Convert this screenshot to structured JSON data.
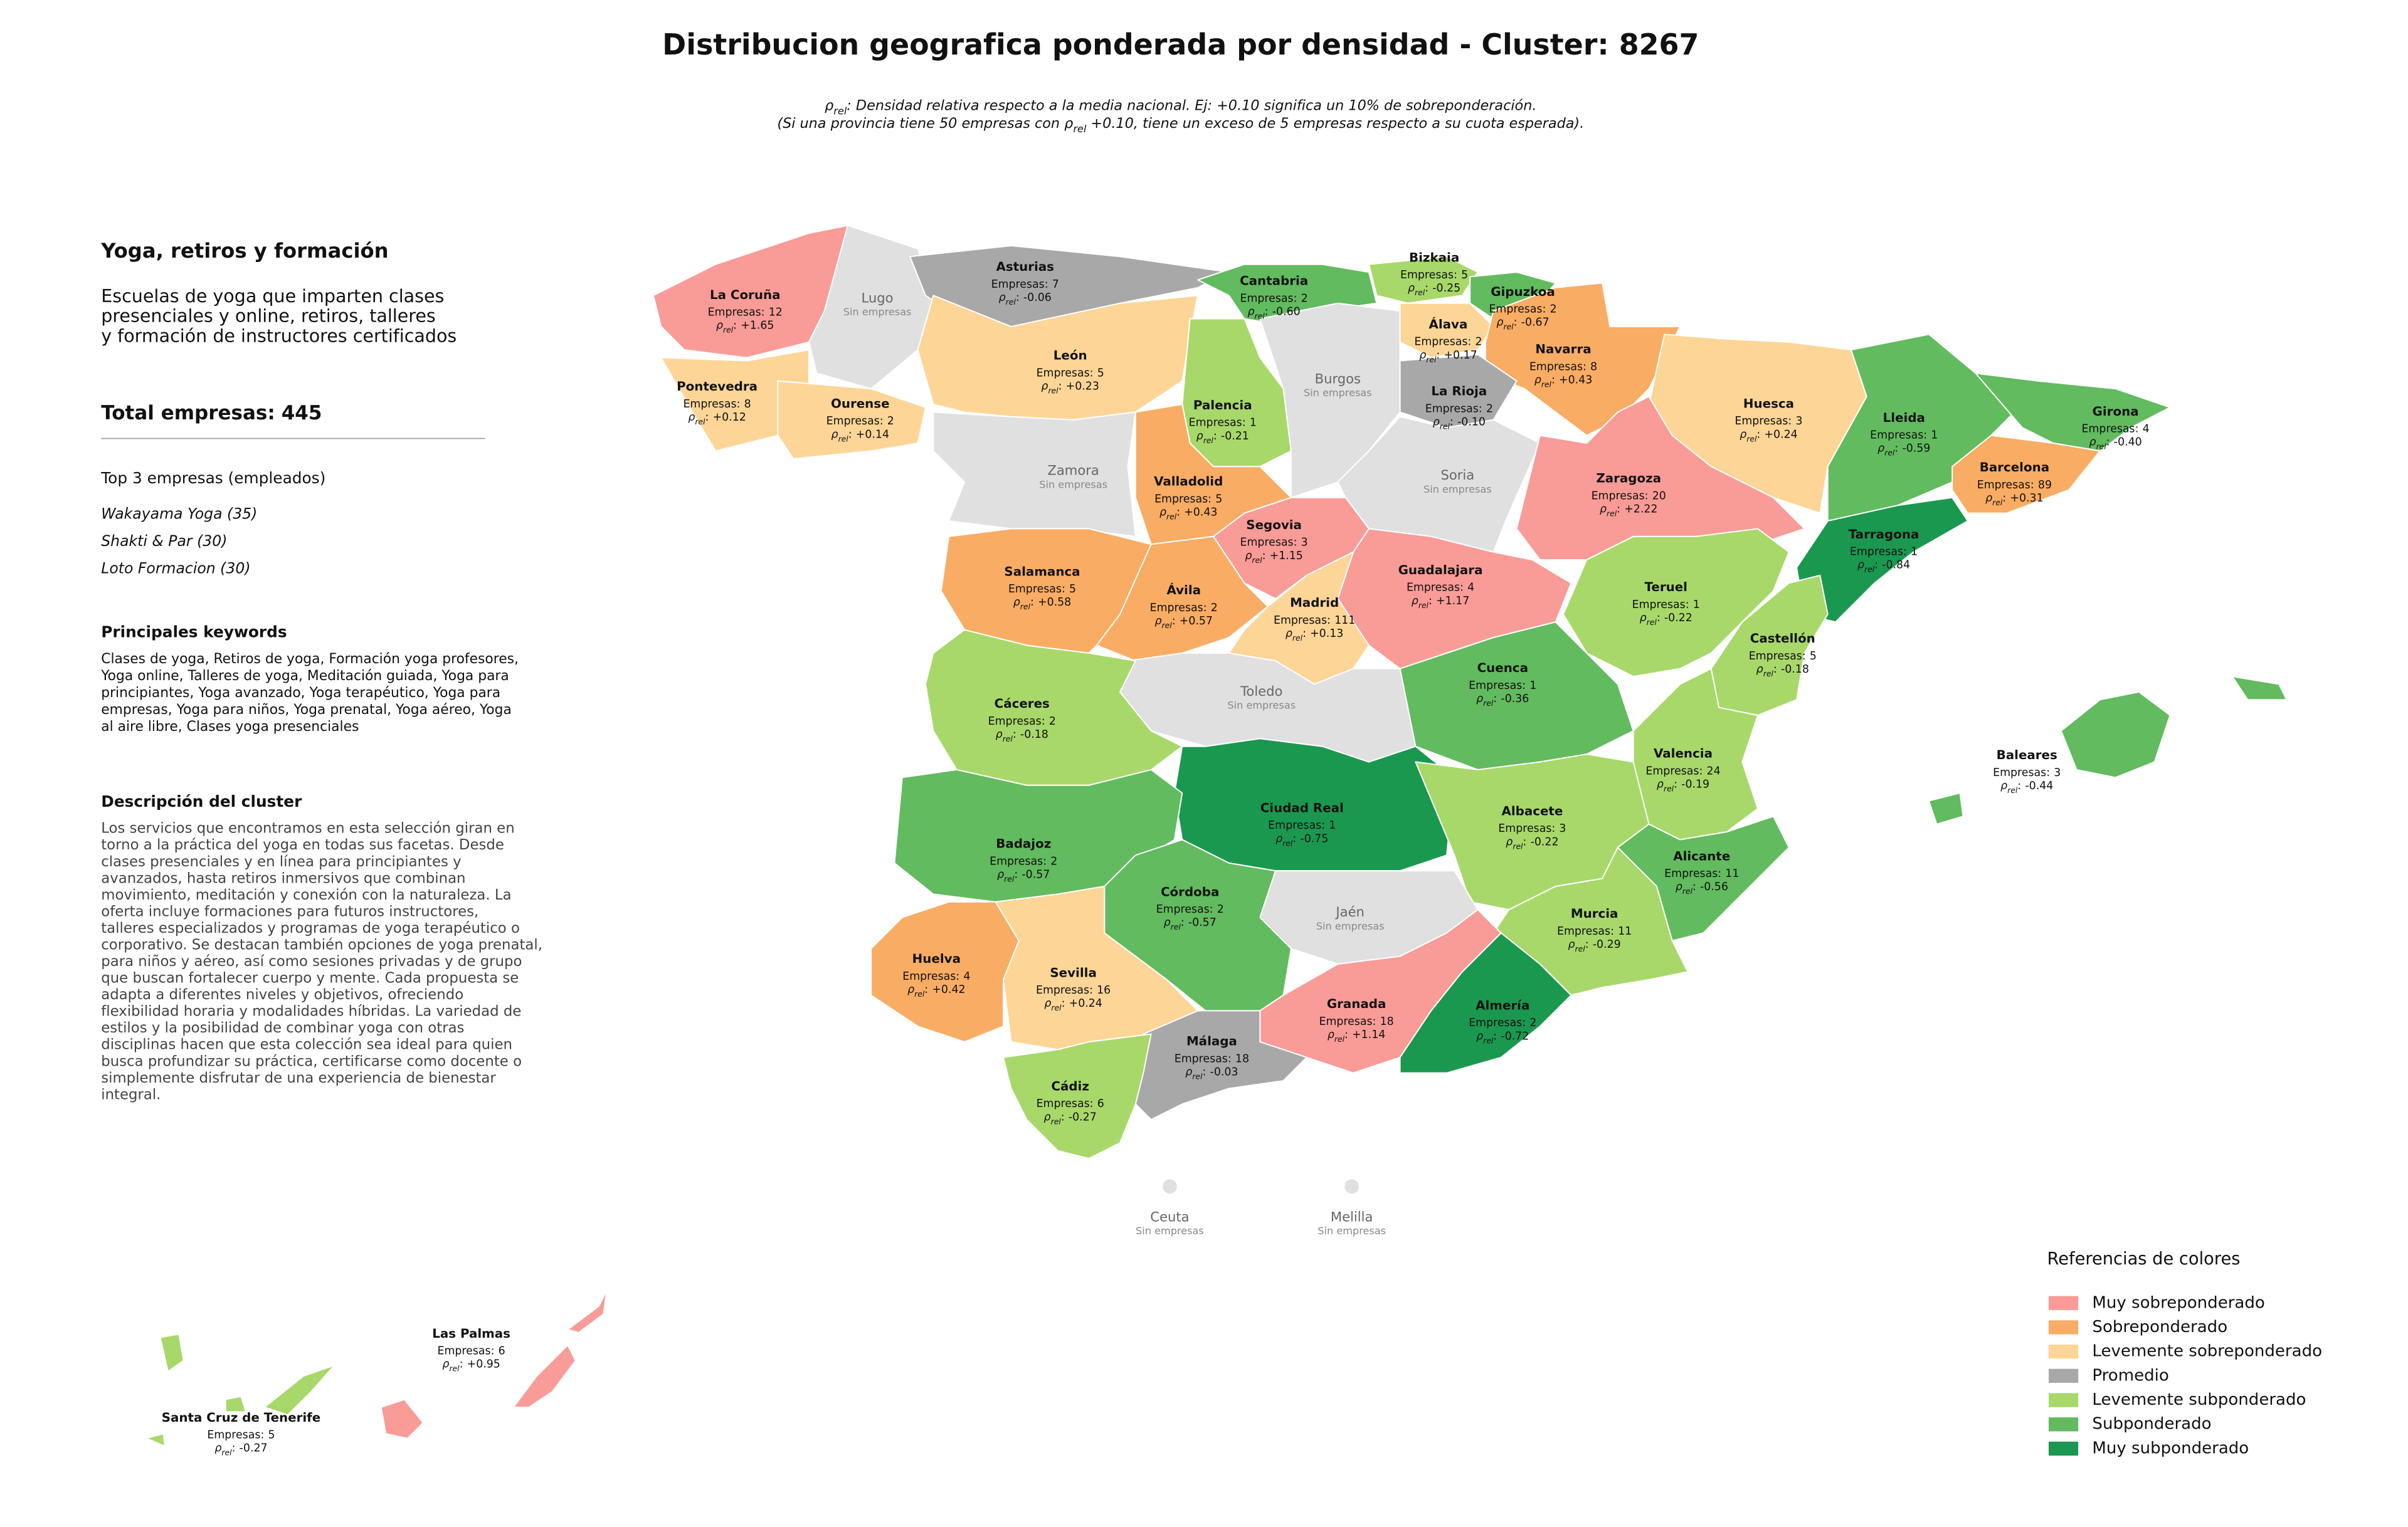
{
  "title": "Distribucion geografica ponderada por densidad - Cluster: 8267",
  "note_lines": [
    [
      {
        "t": "ρ"
      },
      {
        "sub": "rel"
      },
      {
        "t": ": Densidad relativa respecto a la media nacional. Ej: +0.10 significa un 10% de sobreponderación."
      }
    ],
    [
      {
        "t": "(Si una provincia tiene 50 empresas con "
      },
      {
        "t": "ρ"
      },
      {
        "sub": "rel"
      },
      {
        "t": " +0.10, tiene un exceso de 5 empresas respecto a su cuota esperada)."
      }
    ]
  ],
  "sidebar": {
    "title": "Yoga, retiros y formación",
    "description": [
      "Escuelas de yoga que imparten clases",
      "presenciales y online, retiros, talleres",
      "y formación de instructores certificados"
    ],
    "total_label": "Total empresas:",
    "total": 445,
    "top_heading": "Top 3 empresas (empleados)",
    "top": [
      "Wakayama Yoga (35)",
      "Shakti & Par (30)",
      "Loto Formacion (30)"
    ],
    "keywords_heading": "Principales keywords",
    "keywords": [
      "Clases de yoga, Retiros de yoga, Formación yoga profesores,",
      "Yoga online, Talleres de yoga, Meditación guiada, Yoga para",
      "principiantes, Yoga avanzado, Yoga terapéutico, Yoga para",
      "empresas, Yoga para niños, Yoga prenatal, Yoga aéreo, Yoga",
      "al aire libre, Clases yoga presenciales"
    ],
    "cluster_heading": "Descripción del cluster",
    "cluster_text": [
      "Los servicios que encontramos en esta selección giran en",
      "torno a la práctica del yoga en todas sus facetas. Desde",
      "clases presenciales y en línea para principiantes y",
      "avanzados, hasta retiros inmersivos que combinan",
      "movimiento, meditación y conexión con la naturaleza. La",
      "oferta incluye formaciones para futuros instructores,",
      "talleres especializados y programas de yoga terapéutico o",
      "corporativo. Se destacan también opciones de yoga prenatal,",
      "para niños y aéreo, así como sesiones privadas y de grupo",
      "que buscan fortalecer cuerpo y mente. Cada propuesta se",
      "adapta a diferentes niveles y objetivos, ofreciendo",
      "flexibilidad horaria y modalidades híbridas. La variedad de",
      "estilos y la posibilidad de combinar yoga con otras",
      "disciplinas hacen que esta colección sea ideal para quien",
      "busca profundizar su práctica, certificarse como docente o",
      "simplemente disfrutar de una experiencia de bienestar",
      "integral."
    ]
  },
  "count_prefix": "Empresas:",
  "rho_symbol": "ρ",
  "rho_subscript": "rel",
  "rho_separator": ":",
  "empty_label": "Sin empresas",
  "empty_color": "#e0e0e0",
  "provinces": [
    {
      "name": "La Coruña",
      "count": 12,
      "rho": 1.65,
      "rho_label": "+1.65",
      "color": "#f99b97"
    },
    {
      "name": "Lugo"
    },
    {
      "name": "Asturias",
      "count": 7,
      "rho": -0.06,
      "rho_label": "-0.06",
      "color": "#a8a8a8"
    },
    {
      "name": "Cantabria",
      "count": 2,
      "rho": -0.6,
      "rho_label": "-0.60",
      "color": "#62bb5f"
    },
    {
      "name": "Bizkaia",
      "count": 5,
      "rho": -0.25,
      "rho_label": "-0.25",
      "color": "#a8d86a"
    },
    {
      "name": "Gipuzkoa",
      "count": 2,
      "rho": -0.67,
      "rho_label": "-0.67",
      "color": "#62bb5f"
    },
    {
      "name": "Álava",
      "count": 2,
      "rho": 0.17,
      "rho_label": "+0.17",
      "color": "#fdd597"
    },
    {
      "name": "Navarra",
      "count": 8,
      "rho": 0.43,
      "rho_label": "+0.43",
      "color": "#f9ac63"
    },
    {
      "name": "La Rioja",
      "count": 2,
      "rho": -0.1,
      "rho_label": "-0.10",
      "color": "#a8a8a8"
    },
    {
      "name": "Pontevedra",
      "count": 8,
      "rho": 0.12,
      "rho_label": "+0.12",
      "color": "#fdd597"
    },
    {
      "name": "Ourense",
      "count": 2,
      "rho": 0.14,
      "rho_label": "+0.14",
      "color": "#fdd597"
    },
    {
      "name": "León",
      "count": 5,
      "rho": 0.23,
      "rho_label": "+0.23",
      "color": "#fdd597"
    },
    {
      "name": "Palencia",
      "count": 1,
      "rho": -0.21,
      "rho_label": "-0.21",
      "color": "#a8d86a"
    },
    {
      "name": "Burgos"
    },
    {
      "name": "Huesca",
      "count": 3,
      "rho": 0.24,
      "rho_label": "+0.24",
      "color": "#fdd597"
    },
    {
      "name": "Lleida",
      "count": 1,
      "rho": -0.59,
      "rho_label": "-0.59",
      "color": "#62bb5f"
    },
    {
      "name": "Girona",
      "count": 4,
      "rho": -0.4,
      "rho_label": "-0.40",
      "color": "#62bb5f"
    },
    {
      "name": "Barcelona",
      "count": 89,
      "rho": 0.31,
      "rho_label": "+0.31",
      "color": "#f9ac63"
    },
    {
      "name": "Zamora"
    },
    {
      "name": "Valladolid",
      "count": 5,
      "rho": 0.43,
      "rho_label": "+0.43",
      "color": "#f9ac63"
    },
    {
      "name": "Soria"
    },
    {
      "name": "Zaragoza",
      "count": 20,
      "rho": 2.22,
      "rho_label": "+2.22",
      "color": "#f99b97"
    },
    {
      "name": "Segovia",
      "count": 3,
      "rho": 1.15,
      "rho_label": "+1.15",
      "color": "#f99b97"
    },
    {
      "name": "Tarragona",
      "count": 1,
      "rho": -0.84,
      "rho_label": "-0.84",
      "color": "#1a9850"
    },
    {
      "name": "Salamanca",
      "count": 5,
      "rho": 0.58,
      "rho_label": "+0.58",
      "color": "#f9ac63"
    },
    {
      "name": "Ávila",
      "count": 2,
      "rho": 0.57,
      "rho_label": "+0.57",
      "color": "#f9ac63"
    },
    {
      "name": "Guadalajara",
      "count": 4,
      "rho": 1.17,
      "rho_label": "+1.17",
      "color": "#f99b97"
    },
    {
      "name": "Teruel",
      "count": 1,
      "rho": -0.22,
      "rho_label": "-0.22",
      "color": "#a8d86a"
    },
    {
      "name": "Madrid",
      "count": 111,
      "rho": 0.13,
      "rho_label": "+0.13",
      "color": "#fdd597"
    },
    {
      "name": "Castellón",
      "count": 5,
      "rho": -0.18,
      "rho_label": "-0.18",
      "color": "#a8d86a"
    },
    {
      "name": "Cuenca",
      "count": 1,
      "rho": -0.36,
      "rho_label": "-0.36",
      "color": "#62bb5f"
    },
    {
      "name": "Toledo"
    },
    {
      "name": "Cáceres",
      "count": 2,
      "rho": -0.18,
      "rho_label": "-0.18",
      "color": "#a8d86a"
    },
    {
      "name": "Valencia",
      "count": 24,
      "rho": -0.19,
      "rho_label": "-0.19",
      "color": "#a8d86a"
    },
    {
      "name": "Ciudad Real",
      "count": 1,
      "rho": -0.75,
      "rho_label": "-0.75",
      "color": "#1a9850"
    },
    {
      "name": "Albacete",
      "count": 3,
      "rho": -0.22,
      "rho_label": "-0.22",
      "color": "#a8d86a"
    },
    {
      "name": "Baleares",
      "count": 3,
      "rho": -0.44,
      "rho_label": "-0.44",
      "color": "#62bb5f"
    },
    {
      "name": "Badajoz",
      "count": 2,
      "rho": -0.57,
      "rho_label": "-0.57",
      "color": "#62bb5f"
    },
    {
      "name": "Alicante",
      "count": 11,
      "rho": -0.56,
      "rho_label": "-0.56",
      "color": "#62bb5f"
    },
    {
      "name": "Córdoba",
      "count": 2,
      "rho": -0.57,
      "rho_label": "-0.57",
      "color": "#62bb5f"
    },
    {
      "name": "Jaén"
    },
    {
      "name": "Murcia",
      "count": 11,
      "rho": -0.29,
      "rho_label": "-0.29",
      "color": "#a8d86a"
    },
    {
      "name": "Huelva",
      "count": 4,
      "rho": 0.42,
      "rho_label": "+0.42",
      "color": "#f9ac63"
    },
    {
      "name": "Sevilla",
      "count": 16,
      "rho": 0.24,
      "rho_label": "+0.24",
      "color": "#fdd597"
    },
    {
      "name": "Granada",
      "count": 18,
      "rho": 1.14,
      "rho_label": "+1.14",
      "color": "#f99b97"
    },
    {
      "name": "Almería",
      "count": 2,
      "rho": -0.72,
      "rho_label": "-0.72",
      "color": "#1a9850"
    },
    {
      "name": "Málaga",
      "count": 18,
      "rho": -0.03,
      "rho_label": "-0.03",
      "color": "#a8a8a8"
    },
    {
      "name": "Cádiz",
      "count": 6,
      "rho": -0.27,
      "rho_label": "-0.27",
      "color": "#a8d86a"
    },
    {
      "name": "Ceuta"
    },
    {
      "name": "Melilla"
    },
    {
      "name": "Las Palmas",
      "count": 6,
      "rho": 0.95,
      "rho_label": "+0.95",
      "color": "#f99b97"
    },
    {
      "name": "Santa Cruz de Tenerife",
      "count": 5,
      "rho": -0.27,
      "rho_label": "-0.27",
      "color": "#a8d86a"
    }
  ],
  "legend": {
    "title": "Referencias de colores",
    "items": [
      {
        "name": "Muy sobreponderado",
        "color": "#f99b97"
      },
      {
        "name": "Sobreponderado",
        "color": "#f9ac63"
      },
      {
        "name": "Levemente sobreponderado",
        "color": "#fdd597"
      },
      {
        "name": "Promedio",
        "color": "#a8a8a8"
      },
      {
        "name": "Levemente subponderado",
        "color": "#a8d86a"
      },
      {
        "name": "Subponderado",
        "color": "#62bb5f"
      },
      {
        "name": "Muy subponderado",
        "color": "#1a9850"
      }
    ]
  }
}
